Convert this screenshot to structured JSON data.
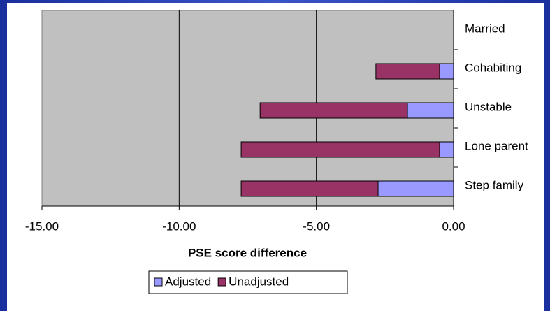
{
  "chart_data": {
    "type": "bar",
    "orientation": "horizontal",
    "overlap": true,
    "categories": [
      "Married",
      "Cohabiting",
      "Unstable",
      "Lone parent",
      "Step family"
    ],
    "series": [
      {
        "name": "Unadjusted",
        "color": "#993366",
        "values": [
          0,
          -2.83,
          -7.05,
          -7.74,
          -7.74
        ]
      },
      {
        "name": "Adjusted",
        "color": "#9999ff",
        "values": [
          0,
          -0.51,
          -1.68,
          -0.51,
          -2.75
        ]
      }
    ],
    "legend_order": [
      "Adjusted",
      "Unadjusted"
    ],
    "xlabel": "PSE score difference",
    "xlim": [
      -15,
      0
    ],
    "xticks": [
      {
        "value": -15,
        "label": "-15.00"
      },
      {
        "value": -10,
        "label": "-10.00"
      },
      {
        "value": -5,
        "label": "-5.00"
      },
      {
        "value": 0,
        "label": "0.00"
      }
    ],
    "grid": true,
    "plot_background": "#c0c0c0",
    "legend": "bottom"
  }
}
